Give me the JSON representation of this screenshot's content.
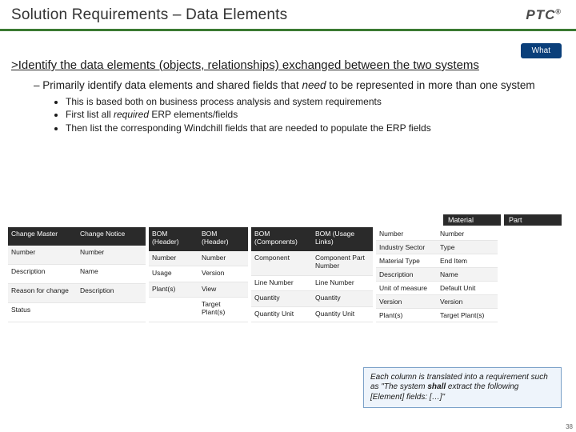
{
  "header": {
    "title": "Solution Requirements – Data Elements",
    "logo_text": "PTC",
    "logo_sup": "®"
  },
  "badge": {
    "label": "What"
  },
  "main": {
    "line": ">Identify the data elements (objects, relationships) exchanged between the two systems",
    "sub": "Primarily identify data elements and shared fields that need to be represented in more than one system",
    "bullets": [
      "This is based both on business process analysis and system requirements",
      "First list all required ERP elements/fields",
      "Then list the corresponding Windchill fields that are needed to populate the ERP fields"
    ]
  },
  "floating": {
    "material": "Material",
    "part": "Part"
  },
  "tables": {
    "t1": {
      "headers": [
        "Change Master",
        "Change Notice"
      ],
      "rows": [
        [
          "Number",
          "Number"
        ],
        [
          "Description",
          "Name"
        ],
        [
          "Reason for change",
          "Description"
        ],
        [
          "Status",
          ""
        ]
      ]
    },
    "t2": {
      "headers": [
        "BOM (Header)",
        "BOM (Header)"
      ],
      "rows": [
        [
          "Number",
          "Number"
        ],
        [
          "Usage",
          "Version"
        ],
        [
          "Plant(s)",
          "View"
        ],
        [
          "",
          "Target Plant(s)"
        ]
      ]
    },
    "t3": {
      "headers": [
        "BOM (Components)",
        "BOM (Usage Links)"
      ],
      "rows": [
        [
          "Component",
          "Component Part Number"
        ],
        [
          "Line Number",
          "Line Number"
        ],
        [
          "Quantity",
          "Quantity"
        ],
        [
          "Quantity Unit",
          "Quantity Unit"
        ]
      ]
    },
    "t4": {
      "headers_implicit": true,
      "rows": [
        [
          "Number",
          "Number"
        ],
        [
          "Industry Sector",
          "Type"
        ],
        [
          "Material Type",
          "End Item"
        ],
        [
          "Description",
          "Name"
        ],
        [
          "Unit of measure",
          "Default Unit"
        ],
        [
          "Version",
          "Version"
        ],
        [
          "Plant(s)",
          "Target Plant(s)"
        ]
      ]
    }
  },
  "footnote": {
    "text_pre": "Each column is translated into a requirement such as \"The system ",
    "bold": "shall",
    "text_post": " extract the following [Element] fields: […]\""
  },
  "page": {
    "num": "38"
  },
  "colors": {
    "accent_green": "#3a7a32",
    "badge_blue": "#0a3f7a",
    "table_header": "#2a2a2a",
    "footnote_bg": "#eef4fb",
    "footnote_border": "#7aa0c8"
  }
}
